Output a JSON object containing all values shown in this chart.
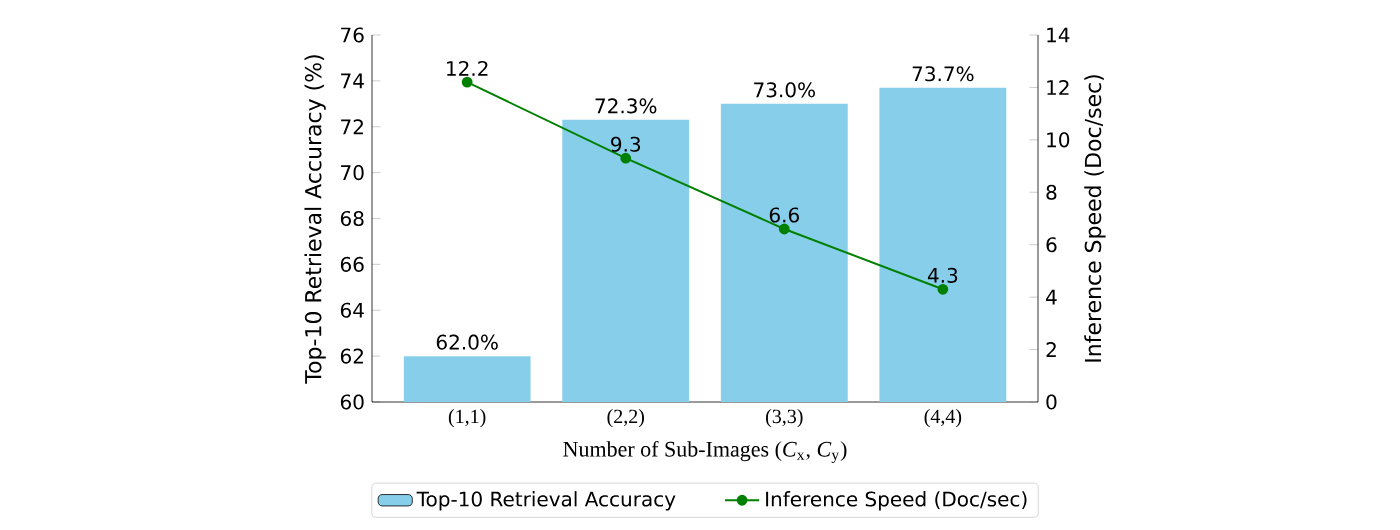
{
  "chart_data": {
    "type": "bar",
    "xlabel": "Number of Sub-Images (*C*$_{x}$, *C*$_{y}$)",
    "ylabel": "Top-10 Retrieval Accuracy (%)",
    "y2label": "Inference Speed (Doc/sec)",
    "categories": [
      "(1,1)",
      "(2,2)",
      "(3,3)",
      "(4,4)"
    ],
    "series": [
      {
        "name": "Top-10 Retrieval Accuracy",
        "color": "#87ceeb",
        "values": [
          62.0,
          72.3,
          73.0,
          73.7
        ],
        "value_labels": [
          "62.0%",
          "72.3%",
          "73.0%",
          "73.7%"
        ]
      },
      {
        "name": "Inference Speed (Doc/sec)",
        "type": "line",
        "axis": "y2",
        "color": "#008000",
        "marker": "circle",
        "line_style": "solid",
        "values": [
          12.2,
          9.3,
          6.6,
          4.3
        ],
        "value_labels": [
          "12.2",
          "9.3",
          "6.6",
          "4.3"
        ]
      }
    ],
    "ylim": [
      60,
      76
    ],
    "yticks": [
      60,
      62,
      64,
      66,
      68,
      70,
      72,
      74,
      76
    ],
    "y2lim": [
      0,
      14
    ],
    "y2ticks": [
      0,
      2,
      4,
      6,
      8,
      10,
      12,
      14
    ],
    "legend": "bottom"
  }
}
